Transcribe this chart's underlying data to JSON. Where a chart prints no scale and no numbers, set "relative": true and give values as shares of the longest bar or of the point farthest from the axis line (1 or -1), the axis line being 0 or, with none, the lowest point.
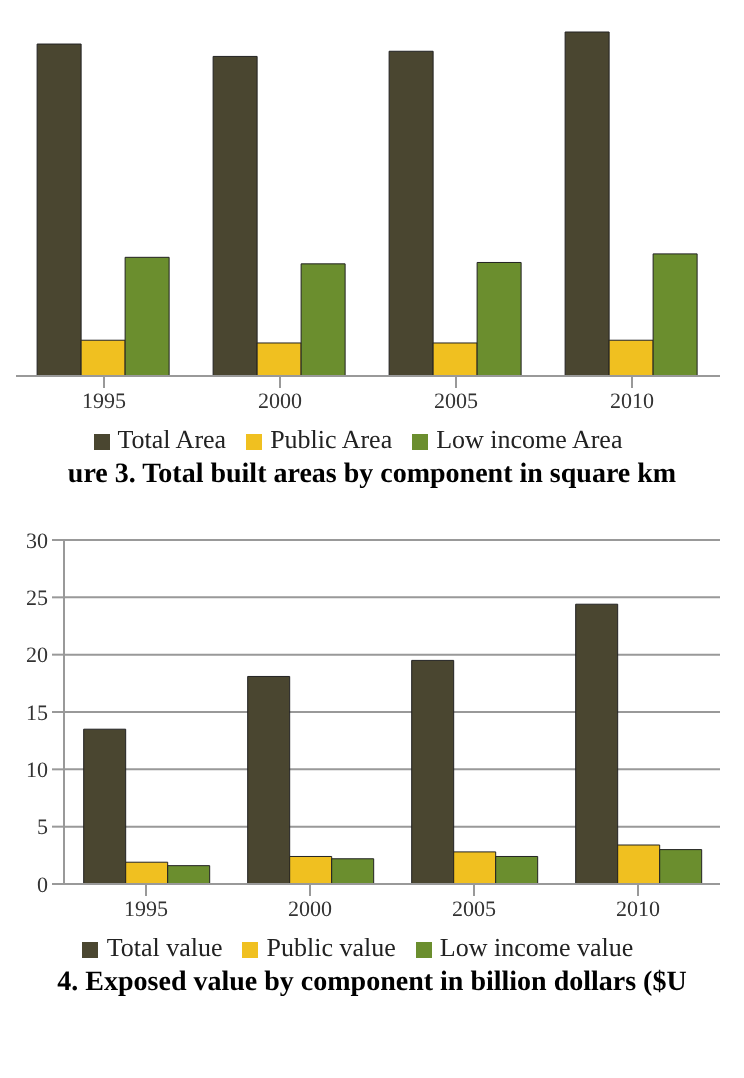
{
  "chart_data": [
    {
      "type": "bar",
      "title": "ure 3. Total built areas by component in square km",
      "relative": true,
      "categories": [
        "1995",
        "2000",
        "2005",
        "2010"
      ],
      "series": [
        {
          "name": "Total Area",
          "color": "#4a4630",
          "values": [
            0.965,
            0.929,
            0.944,
            1
          ]
        },
        {
          "name": "Public Area",
          "color": "#f0c020",
          "values": [
            0.104,
            0.096,
            0.096,
            0.104
          ]
        },
        {
          "name": "Low income Area",
          "color": "#6b8e2e",
          "values": [
            0.345,
            0.326,
            0.33,
            0.355
          ]
        }
      ],
      "legend": "bottom"
    },
    {
      "type": "bar",
      "title": "4. Exposed value by component in billion dollars ($U",
      "categories": [
        "1995",
        "2000",
        "2005",
        "2010"
      ],
      "series": [
        {
          "name": "Total value",
          "color": "#4a4630",
          "values": [
            13.5,
            18.1,
            19.5,
            24.4
          ]
        },
        {
          "name": "Public value",
          "color": "#f0c020",
          "values": [
            1.9,
            2.4,
            2.8,
            3.4
          ]
        },
        {
          "name": "Low income value",
          "color": "#6b8e2e",
          "values": [
            1.6,
            2.2,
            2.4,
            3.0
          ]
        }
      ],
      "ylim": [
        0,
        30
      ],
      "yticks": [
        0,
        5,
        10,
        15,
        20,
        25,
        30
      ],
      "grid": "y",
      "legend": "bottom"
    }
  ]
}
